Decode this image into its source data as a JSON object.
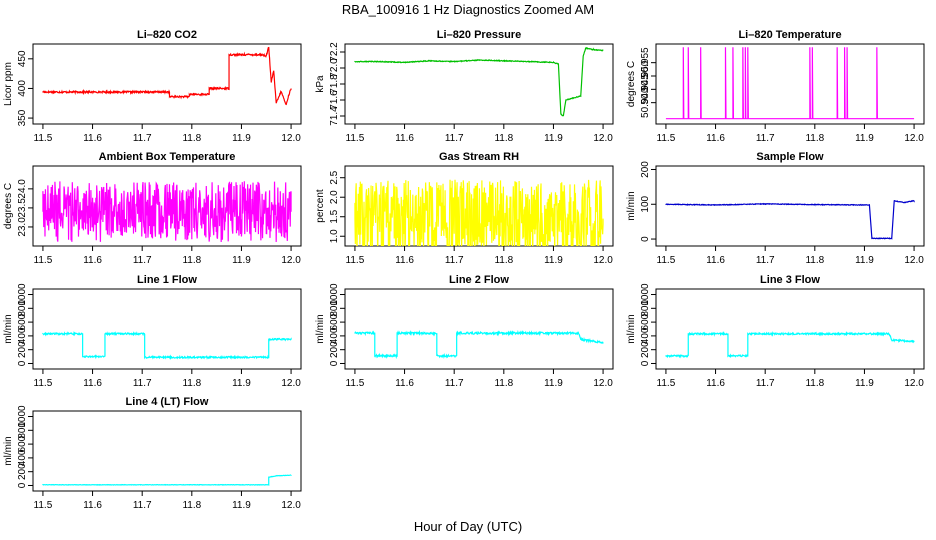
{
  "figure": {
    "title": "RBA_100916  1 Hz Diagnostics Zoomed AM",
    "xlabel": "Hour of Day (UTC)"
  },
  "chart_data": [
    {
      "type": "line",
      "title": "Li–820 CO2",
      "ylabel": "Licor ppm",
      "color": "#ff0000",
      "xlim": [
        11.48,
        12.02
      ],
      "xticks": [
        "11.5",
        "11.6",
        "11.7",
        "11.8",
        "11.9",
        "12.0"
      ],
      "ylim": [
        340,
        475
      ],
      "yticks": [
        350,
        400,
        450
      ],
      "x": [
        11.5,
        11.6,
        11.7,
        11.755,
        11.755,
        11.795,
        11.795,
        11.835,
        11.835,
        11.875,
        11.875,
        11.94,
        11.95,
        11.955,
        11.96,
        11.965,
        11.97,
        11.98,
        11.99,
        11.995,
        12.0
      ],
      "values": [
        394,
        394,
        394,
        394,
        386,
        386,
        390,
        390,
        400,
        400,
        457,
        457,
        455,
        470,
        410,
        430,
        375,
        395,
        372,
        388,
        400
      ],
      "noise": 1.5
    },
    {
      "type": "line",
      "title": "Li–820 Pressure",
      "ylabel": "kPa",
      "color": "#00c000",
      "xlim": [
        11.48,
        12.02
      ],
      "xticks": [
        "11.5",
        "11.6",
        "11.7",
        "11.8",
        "11.9",
        "12.0"
      ],
      "ylim": [
        71.3,
        72.3
      ],
      "yticks": [
        71.4,
        71.6,
        71.8,
        72.0,
        72.2
      ],
      "x": [
        11.5,
        11.55,
        11.6,
        11.65,
        11.7,
        11.75,
        11.8,
        11.85,
        11.9,
        11.91,
        11.915,
        11.92,
        11.925,
        11.955,
        11.96,
        11.965,
        11.98,
        12.0
      ],
      "values": [
        72.08,
        72.08,
        72.07,
        72.09,
        72.08,
        72.1,
        72.09,
        72.08,
        72.07,
        72.05,
        71.42,
        71.4,
        71.6,
        71.65,
        72.15,
        72.25,
        72.23,
        72.22
      ],
      "noise": 0.005
    },
    {
      "type": "line",
      "title": "Li–820 Temperature",
      "ylabel": "degrees C",
      "color": "#ff00ff",
      "xlim": [
        11.48,
        12.02
      ],
      "xticks": [
        "11.5",
        "11.6",
        "11.7",
        "11.8",
        "11.9",
        "12.0"
      ],
      "ylim": [
        50.932,
        50.962
      ],
      "yticks": [
        50.94,
        50.945,
        50.95,
        50.955
      ],
      "baseline": 50.934,
      "spikes": [
        11.535,
        11.545,
        11.57,
        11.62,
        11.635,
        11.655,
        11.66,
        11.665,
        11.79,
        11.795,
        11.845,
        11.86,
        11.865,
        11.925
      ]
    },
    {
      "type": "line",
      "title": "Ambient Box Temperature",
      "ylabel": "degrees C",
      "color": "#ff00ff",
      "xlim": [
        11.48,
        12.02
      ],
      "xticks": [
        "11.5",
        "11.6",
        "11.7",
        "11.8",
        "11.9",
        "12.0"
      ],
      "ylim": [
        22.5,
        24.6
      ],
      "yticks": [
        23.0,
        23.5,
        24.0
      ],
      "x": [
        11.5,
        12.0
      ],
      "values": [
        23.4,
        23.4
      ],
      "noise": 0.8
    },
    {
      "type": "line",
      "title": "Gas Stream RH",
      "ylabel": "percent",
      "color": "#ffff00",
      "xlim": [
        11.48,
        12.02
      ],
      "xticks": [
        "11.5",
        "11.6",
        "11.7",
        "11.8",
        "11.9",
        "12.0"
      ],
      "ylim": [
        0.75,
        2.8
      ],
      "yticks": [
        1.0,
        1.5,
        2.0,
        2.5
      ],
      "x": [
        11.5,
        12.0
      ],
      "values": [
        1.45,
        1.45
      ],
      "noise": 1.0
    },
    {
      "type": "line",
      "title": "Sample Flow",
      "ylabel": "ml/min",
      "color": "#0000cc",
      "xlim": [
        11.48,
        12.02
      ],
      "xticks": [
        "11.5",
        "11.6",
        "11.7",
        "11.8",
        "11.9",
        "12.0"
      ],
      "ylim": [
        -20,
        210
      ],
      "yticks": [
        0,
        100,
        200
      ],
      "x": [
        11.5,
        11.6,
        11.7,
        11.8,
        11.9,
        11.91,
        11.915,
        11.955,
        11.96,
        11.98,
        12.0
      ],
      "values": [
        100,
        98,
        101,
        99,
        98,
        98,
        2,
        2,
        110,
        105,
        110
      ],
      "noise": 1
    },
    {
      "type": "line",
      "title": "Line 1 Flow",
      "ylabel": "ml/min",
      "color": "#00ffff",
      "xlim": [
        11.48,
        12.02
      ],
      "xticks": [
        "11.5",
        "11.6",
        "11.7",
        "11.8",
        "11.9",
        "12.0"
      ],
      "ylim": [
        -80,
        1080
      ],
      "yticks": [
        0,
        200,
        400,
        600,
        800,
        1000
      ],
      "x": [
        11.5,
        11.58,
        11.58,
        11.625,
        11.625,
        11.705,
        11.705,
        11.955,
        11.955,
        12.0
      ],
      "values": [
        430,
        430,
        100,
        100,
        430,
        430,
        90,
        90,
        350,
        350
      ],
      "noise": 12
    },
    {
      "type": "line",
      "title": "Line 2 Flow",
      "ylabel": "ml/min",
      "color": "#00ffff",
      "xlim": [
        11.48,
        12.02
      ],
      "xticks": [
        "11.5",
        "11.6",
        "11.7",
        "11.8",
        "11.9",
        "12.0"
      ],
      "ylim": [
        -80,
        1080
      ],
      "yticks": [
        0,
        200,
        400,
        600,
        800,
        1000
      ],
      "x": [
        11.5,
        11.54,
        11.54,
        11.585,
        11.585,
        11.665,
        11.665,
        11.705,
        11.705,
        11.95,
        11.955,
        12.0
      ],
      "values": [
        440,
        440,
        110,
        110,
        440,
        440,
        110,
        110,
        440,
        440,
        350,
        300
      ],
      "noise": 15
    },
    {
      "type": "line",
      "title": "Line 3 Flow",
      "ylabel": "ml/min",
      "color": "#00ffff",
      "xlim": [
        11.48,
        12.02
      ],
      "xticks": [
        "11.5",
        "11.6",
        "11.7",
        "11.8",
        "11.9",
        "12.0"
      ],
      "ylim": [
        -80,
        1080
      ],
      "yticks": [
        0,
        200,
        400,
        600,
        800,
        1000
      ],
      "x": [
        11.5,
        11.545,
        11.545,
        11.625,
        11.625,
        11.665,
        11.665,
        11.95,
        11.955,
        12.0
      ],
      "values": [
        110,
        110,
        430,
        430,
        110,
        110,
        430,
        430,
        340,
        320
      ],
      "noise": 12
    },
    {
      "type": "line",
      "title": "Line 4 (LT) Flow",
      "ylabel": "ml/min",
      "color": "#00ffff",
      "xlim": [
        11.48,
        12.02
      ],
      "xticks": [
        "11.5",
        "11.6",
        "11.7",
        "11.8",
        "11.9",
        "12.0"
      ],
      "ylim": [
        -80,
        1080
      ],
      "yticks": [
        0,
        200,
        400,
        600,
        800,
        1000
      ],
      "x": [
        11.5,
        11.955,
        11.955,
        11.97,
        12.0
      ],
      "values": [
        10,
        10,
        120,
        140,
        150
      ],
      "noise": 3
    }
  ]
}
